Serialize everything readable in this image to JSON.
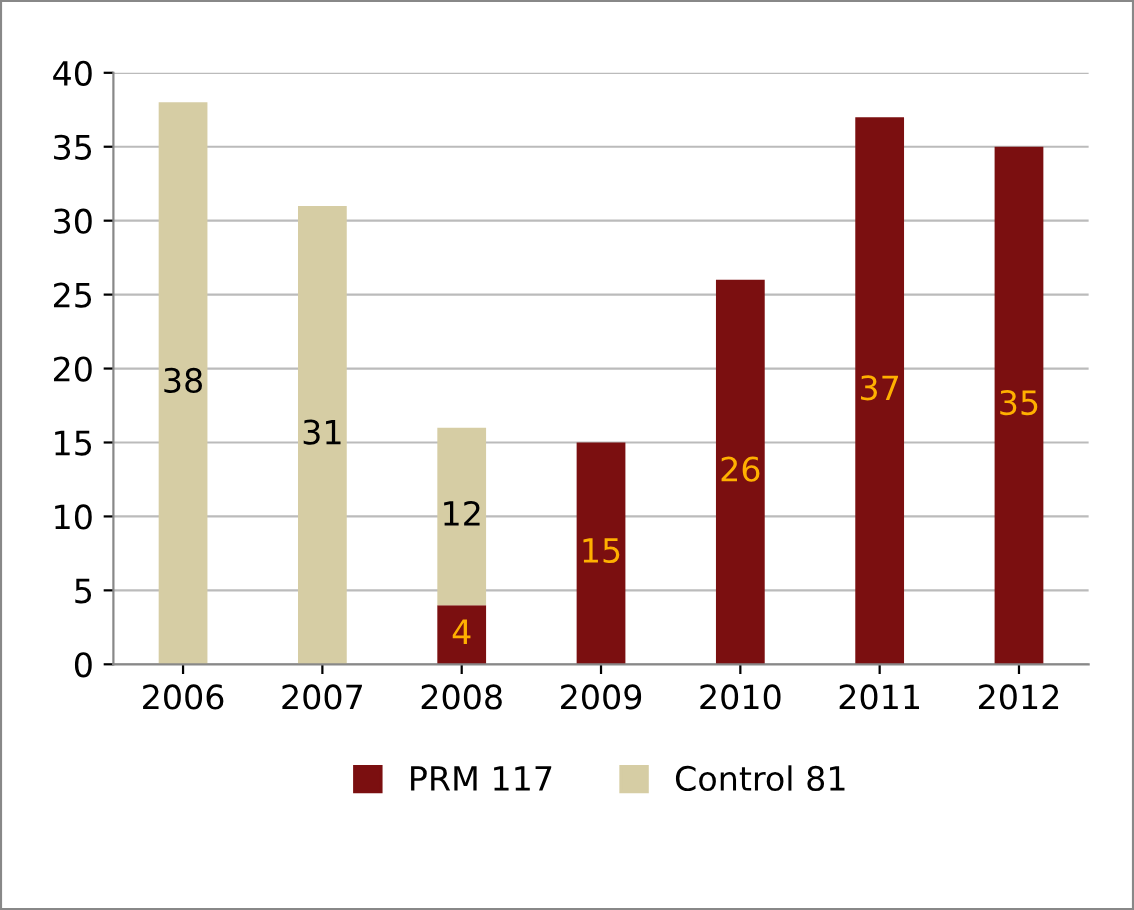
{
  "chart_data": {
    "type": "bar",
    "stacked": true,
    "categories": [
      "2006",
      "2007",
      "2008",
      "2009",
      "2010",
      "2011",
      "2012"
    ],
    "series": [
      {
        "name": "PRM 117",
        "color": "#7b0f10",
        "values": [
          null,
          null,
          4,
          15,
          26,
          37,
          35
        ]
      },
      {
        "name": "Control 81",
        "color": "#d6cda4",
        "values": [
          38,
          31,
          12,
          null,
          null,
          null,
          null
        ]
      }
    ],
    "ylim": [
      0,
      40
    ],
    "yticks": [
      0,
      5,
      10,
      15,
      20,
      25,
      30,
      35,
      40
    ],
    "grid": "y",
    "legend": "bottom",
    "data_labels": true
  }
}
